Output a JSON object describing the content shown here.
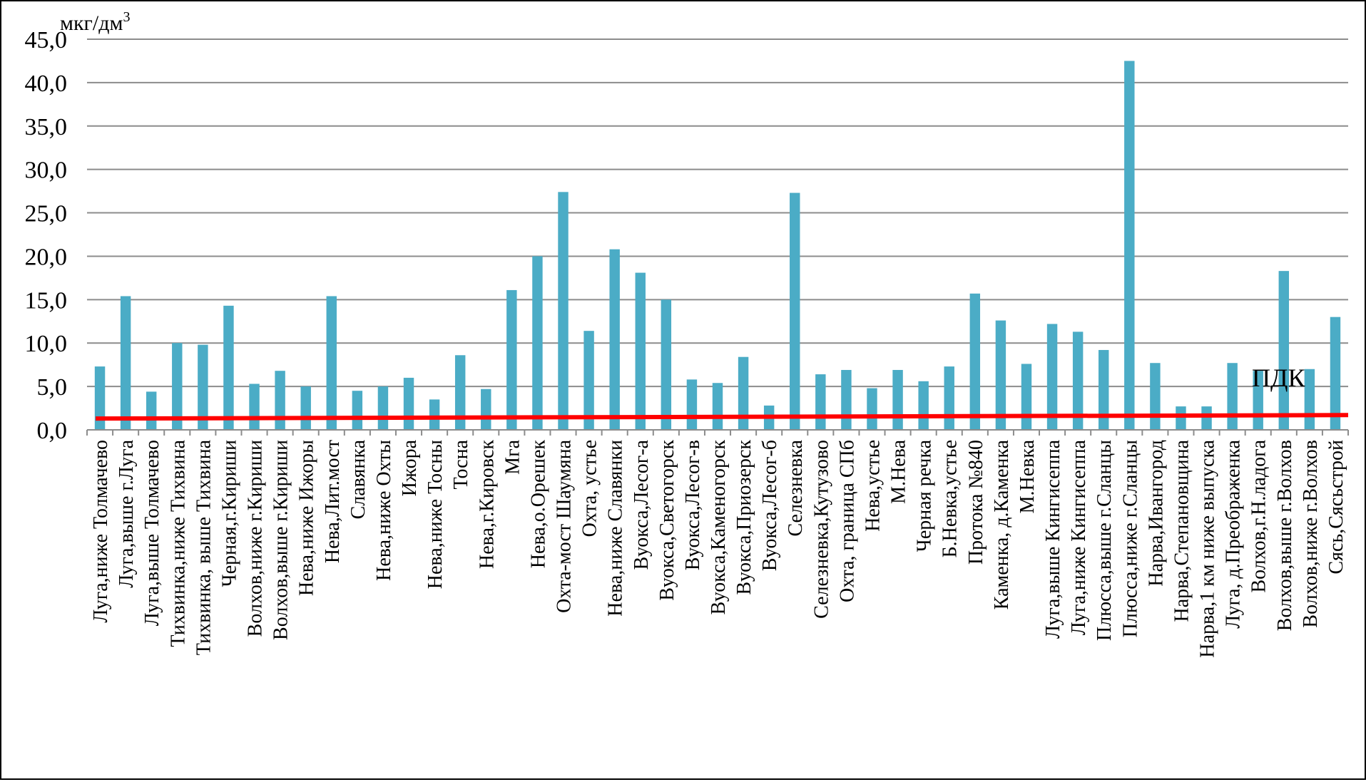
{
  "chart_data": {
    "type": "bar",
    "unit_label": "мкг/дм",
    "unit_superscript": "3",
    "threshold_label": "ПДК",
    "bar_color": "#4bacc6",
    "threshold_color": "#ff0000",
    "grid_color": "#8c8c8c",
    "grid": true,
    "ylim": [
      0,
      45
    ],
    "yticks": [
      "0,0",
      "5,0",
      "10,0",
      "15,0",
      "20,0",
      "25,0",
      "30,0",
      "35,0",
      "40,0",
      "45,0"
    ],
    "threshold": {
      "start": 1.3,
      "end": 1.7
    },
    "categories": [
      "Луга,ниже Толмачево",
      "Луга,выше г.Луга",
      "Луга,выше Толмачево",
      "Тихвинка,ниже Тихвина",
      "Тихвинка, выше Тихвина",
      "Черная,г.Кириши",
      "Волхов,ниже г.Кириши",
      "Волхов,выше г.Кириши",
      "Нева,ниже Ижоры",
      "Нева,Лит.мост",
      "Славянка",
      "Нева,ниже Охты",
      "Ижора",
      "Нева,ниже Тосны",
      "Тосна",
      "Нева,г.Кировск",
      "Мга",
      "Нева,о.Орешек",
      "Охта-мост Шаумяна",
      "Охта, устье",
      "Нева,ниже Славянки",
      "Вуокса,Лесог-а",
      "Вуокса,Светогорск",
      "Вуокса,Лесог-в",
      "Вуокса,Каменогорск",
      "Вуокса,Приозерск",
      "Вуокса,Лесог-б",
      "Селезневка",
      "Селезневка,Кутузово",
      "Охта, граница СПб",
      "Нева,устье",
      "М.Нева",
      "Черная речка",
      "Б.Невка,устье",
      "Протока №840",
      "Каменка, д.Каменка",
      "М.Невка",
      "Луга,выше Кингисеппа",
      "Луга,ниже Кингисеппа",
      "Плюсса,выше г.Сланцы",
      "Плюсса,ниже г.Сланцы",
      "Нарва,Ивангород",
      "Нарва,Степановщина",
      "Нарва,1 км ниже выпуска",
      "Луга, д.Преображенка",
      "Волхов,г.Н.ладога",
      "Волхов,выше г.Волхов",
      "Волхов,ниже г.Волхов",
      "Сясь,Сясьстрой"
    ],
    "values": [
      7.3,
      15.4,
      4.4,
      10.0,
      9.8,
      14.3,
      5.3,
      6.8,
      5.0,
      15.4,
      4.5,
      5.0,
      6.0,
      3.5,
      8.6,
      4.7,
      16.1,
      20.0,
      27.4,
      11.4,
      20.8,
      18.1,
      15.0,
      5.8,
      5.4,
      8.4,
      2.8,
      27.3,
      6.4,
      6.9,
      4.8,
      6.9,
      5.6,
      7.3,
      15.7,
      12.6,
      7.6,
      12.2,
      11.3,
      9.2,
      42.5,
      7.7,
      2.7,
      2.7,
      7.7,
      6.8,
      18.3,
      7.0,
      13.0
    ]
  }
}
